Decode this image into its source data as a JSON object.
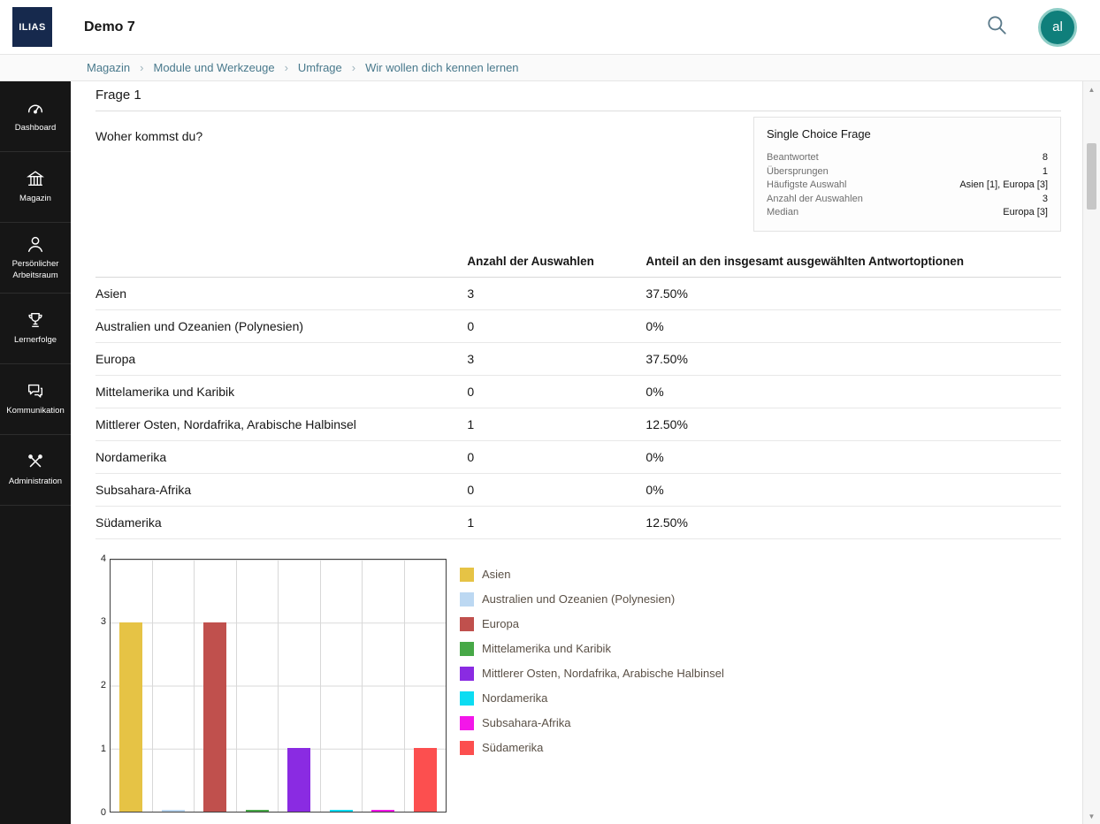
{
  "header": {
    "logo_text": "ILIAS",
    "title": "Demo 7",
    "avatar_initials": "al"
  },
  "breadcrumb": {
    "items": [
      "Magazin",
      "Module und Werkzeuge",
      "Umfrage",
      "Wir wollen dich kennen lernen"
    ]
  },
  "sidebar": {
    "items": [
      {
        "label": "Dashboard",
        "icon": "dashboard-icon"
      },
      {
        "label": "Magazin",
        "icon": "repository-icon"
      },
      {
        "label": "Persönlicher Arbeitsraum",
        "icon": "workspace-icon"
      },
      {
        "label": "Lernerfolge",
        "icon": "achievements-icon"
      },
      {
        "label": "Kommunikation",
        "icon": "communication-icon"
      },
      {
        "label": "Administration",
        "icon": "administration-icon"
      }
    ]
  },
  "question": {
    "panel_title": "Frage 1",
    "text": "Woher kommst du?"
  },
  "stats_box": {
    "title": "Single Choice Frage",
    "rows": [
      {
        "label": "Beantwortet",
        "value": "8"
      },
      {
        "label": "Übersprungen",
        "value": "1"
      },
      {
        "label": "Häufigste Auswahl",
        "value": "Asien [1], Europa [3]"
      },
      {
        "label": "Anzahl der Auswahlen",
        "value": "3"
      },
      {
        "label": "Median",
        "value": "Europa [3]"
      }
    ]
  },
  "table": {
    "columns": [
      "",
      "Anzahl der Auswahlen",
      "Anteil an den insgesamt ausgewählten Antwortoptionen"
    ],
    "rows": [
      {
        "label": "Asien",
        "count": "3",
        "share": "37.50%"
      },
      {
        "label": "Australien und Ozeanien (Polynesien)",
        "count": "0",
        "share": "0%"
      },
      {
        "label": "Europa",
        "count": "3",
        "share": "37.50%"
      },
      {
        "label": "Mittelamerika und Karibik",
        "count": "0",
        "share": "0%"
      },
      {
        "label": "Mittlerer Osten, Nordafrika, Arabische Halbinsel",
        "count": "1",
        "share": "12.50%"
      },
      {
        "label": "Nordamerika",
        "count": "0",
        "share": "0%"
      },
      {
        "label": "Subsahara-Afrika",
        "count": "0",
        "share": "0%"
      },
      {
        "label": "Südamerika",
        "count": "1",
        "share": "12.50%"
      }
    ]
  },
  "chart_data": {
    "type": "bar",
    "title": "",
    "categories": [
      "Asien",
      "Australien und Ozeanien (Polynesien)",
      "Europa",
      "Mittelamerika und Karibik",
      "Mittlerer Osten, Nordafrika, Arabische Halbinsel",
      "Nordamerika",
      "Subsahara-Afrika",
      "Südamerika"
    ],
    "values": [
      3,
      0,
      3,
      0,
      1,
      0,
      0,
      1
    ],
    "colors": [
      "#e6c345",
      "#bcd8f2",
      "#c0504d",
      "#47a847",
      "#8a2be2",
      "#0cdcf2",
      "#f316e9",
      "#fc4f4f"
    ],
    "xlabel": "",
    "ylabel": "",
    "ylim": [
      0,
      4
    ],
    "yticks": [
      0,
      1,
      2,
      3,
      4
    ],
    "grid": true,
    "legend_position": "right"
  },
  "theme": {
    "sidebar_bg": "#161616",
    "logo_bg": "#16294d",
    "avatar_bg": "#0f7f7b",
    "avatar_ring": "#8ecdc6",
    "link_color": "#49798c"
  }
}
